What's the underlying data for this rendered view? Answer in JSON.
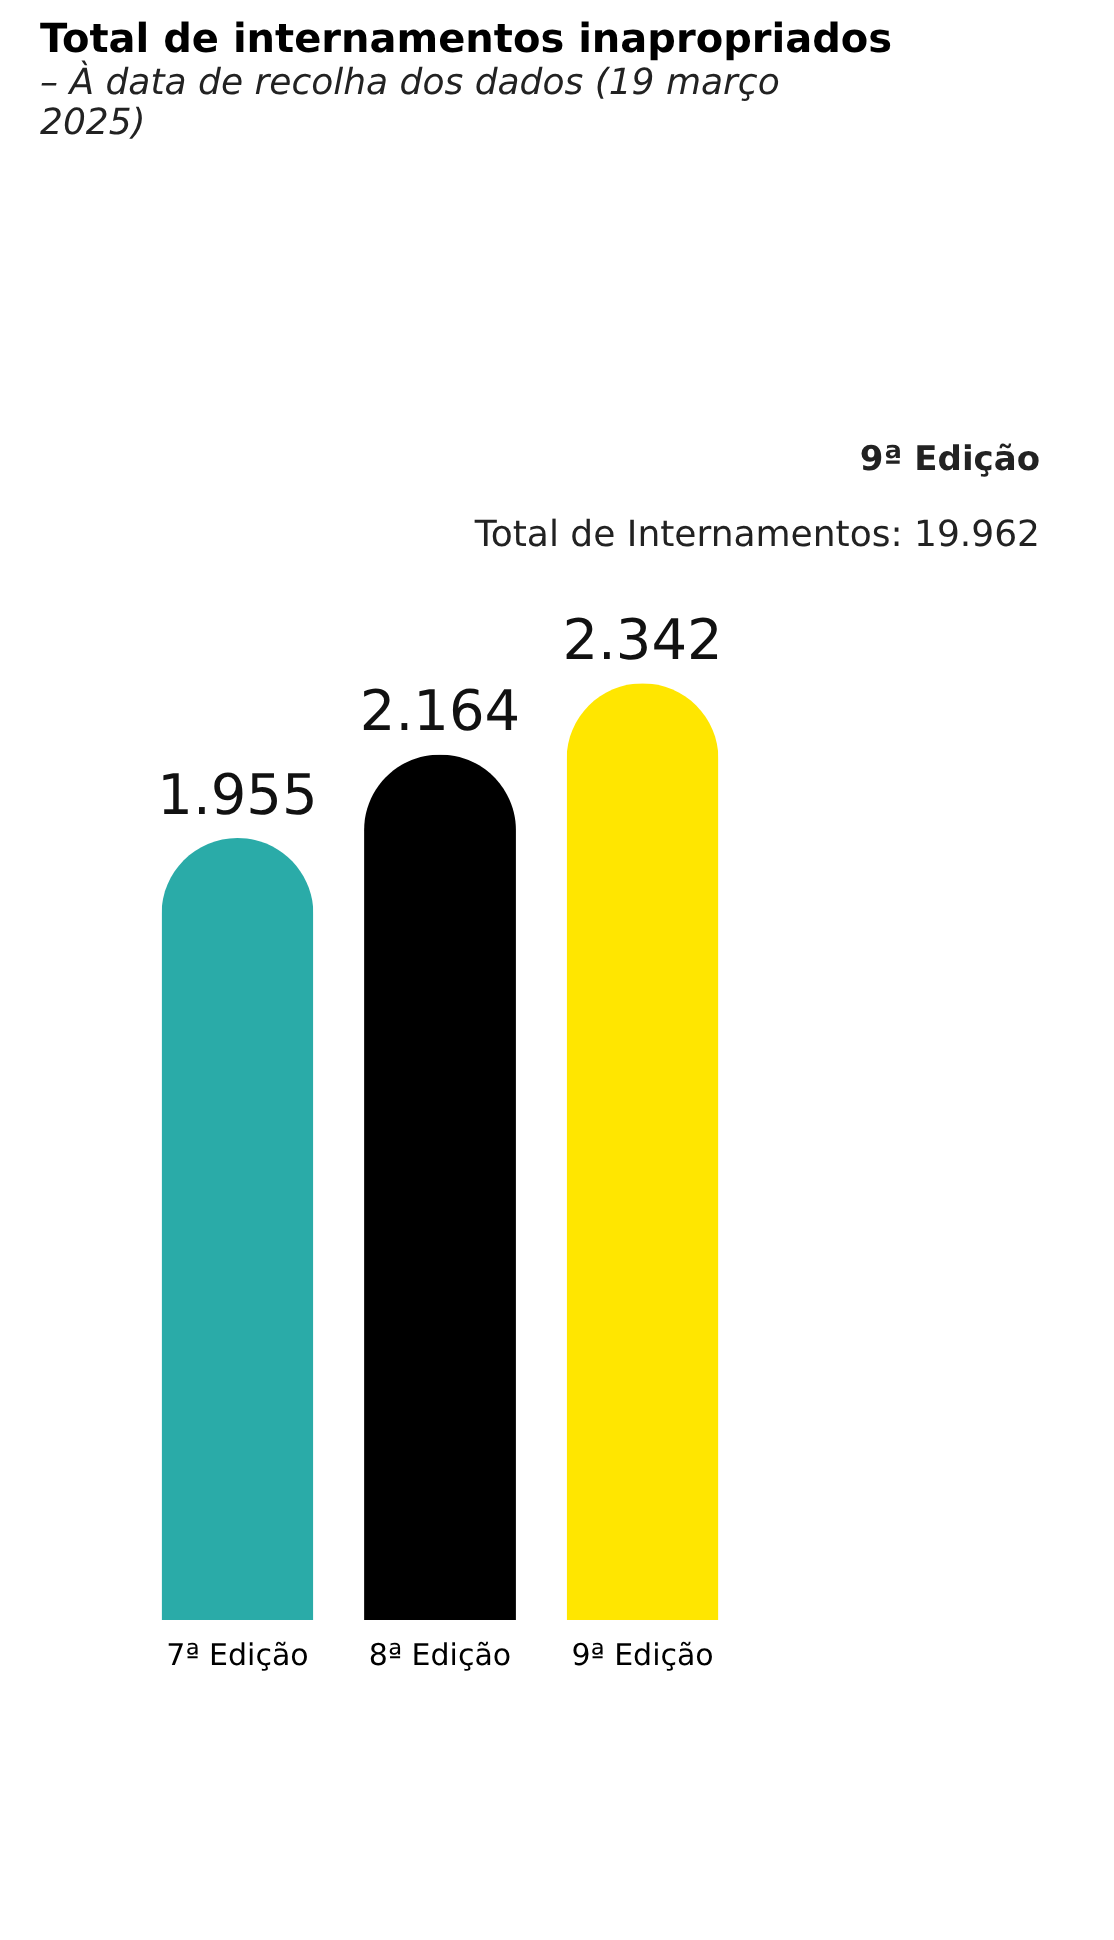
{
  "chart_data": {
    "type": "bar",
    "title": "Total de internamentos inapropriados",
    "subtitle": "– À data de recolha dos dados (19 março 2025)",
    "categories": [
      "7ª Edição",
      "8ª Edição",
      "9ª Edição"
    ],
    "values": [
      1955,
      2164,
      2342
    ],
    "colors": [
      "#2aaba8",
      "#000000",
      "#ffe600"
    ],
    "value_labels": [
      "1.955",
      "2.164",
      "2.342"
    ],
    "annotations": [
      "9ª Edição",
      "Total de Internamentos: 19.962"
    ],
    "grid": false
  }
}
